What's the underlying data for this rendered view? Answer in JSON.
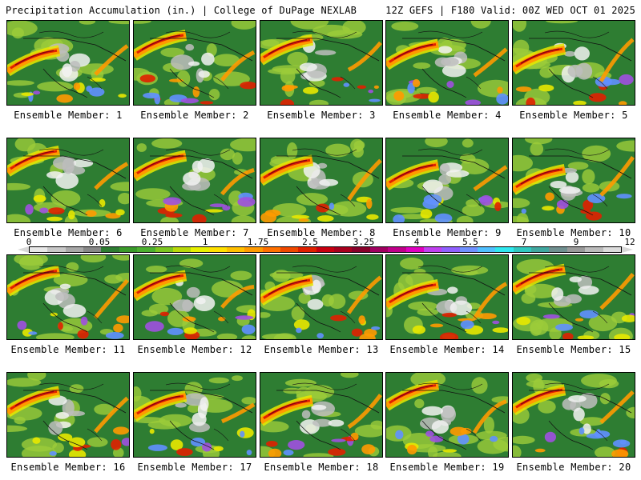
{
  "header": {
    "left": "Precipitation Accumulation (in.) | College of DuPage NEXLAB",
    "right": "12Z GEFS | F180 Valid: 00Z WED OCT 01 2025"
  },
  "members": [
    {
      "label": "Ensemble Member: 1"
    },
    {
      "label": "Ensemble Member: 2"
    },
    {
      "label": "Ensemble Member: 3"
    },
    {
      "label": "Ensemble Member: 4"
    },
    {
      "label": "Ensemble Member: 5"
    },
    {
      "label": "Ensemble Member: 6"
    },
    {
      "label": "Ensemble Member: 7"
    },
    {
      "label": "Ensemble Member: 8"
    },
    {
      "label": "Ensemble Member: 9"
    },
    {
      "label": "Ensemble Member: 10"
    },
    {
      "label": "Ensemble Member: 11"
    },
    {
      "label": "Ensemble Member: 12"
    },
    {
      "label": "Ensemble Member: 13"
    },
    {
      "label": "Ensemble Member: 14"
    },
    {
      "label": "Ensemble Member: 15"
    },
    {
      "label": "Ensemble Member: 16"
    },
    {
      "label": "Ensemble Member: 17"
    },
    {
      "label": "Ensemble Member: 18"
    },
    {
      "label": "Ensemble Member: 19"
    },
    {
      "label": "Ensemble Member: 20"
    }
  ],
  "colorbar": {
    "labels": [
      "0",
      "0.05",
      "0.25",
      "1",
      "1.75",
      "2.5",
      "3.25",
      "4",
      "5.5",
      "7",
      "9",
      "12"
    ],
    "colors": [
      "#e8e8e8",
      "#c8c8c8",
      "#a8a8a8",
      "#888888",
      "#2e7d32",
      "#3a9a2a",
      "#4caf30",
      "#7cc520",
      "#b8d80a",
      "#e8f000",
      "#ffe000",
      "#ffbf00",
      "#ff9a00",
      "#ff7000",
      "#f04800",
      "#e02000",
      "#c80010",
      "#a8001e",
      "#88002a",
      "#a00060",
      "#c0008a",
      "#e000c0",
      "#c040f0",
      "#9060ff",
      "#7090ff",
      "#50c0ff",
      "#30e8f0",
      "#30c8c0",
      "#40a8a0",
      "#709090",
      "#9a9a9a",
      "#bcbcbc",
      "#dcdcdc"
    ]
  },
  "map_colors": {
    "base": "#2e7d32",
    "light": "#9ccc3a",
    "yellow": "#e8e800",
    "orange": "#ff9a00",
    "red": "#e02000",
    "darkred": "#8a0010",
    "white": "#f2f2f2",
    "gray": "#bdbdbd",
    "purple": "#a050e0",
    "blue": "#6090ff",
    "border": "#111111"
  }
}
